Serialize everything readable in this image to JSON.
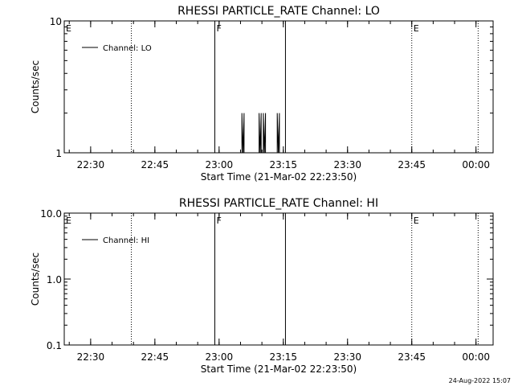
{
  "chart_data": [
    {
      "type": "line",
      "title": "RHESSI PARTICLE_RATE Channel: LO",
      "xlabel": "Start Time (21-Mar-02 22:23:50)",
      "ylabel": "Counts/sec",
      "y_scale": "log",
      "ylim": [
        1,
        10
      ],
      "y_ticks": [
        "1",
        "10"
      ],
      "xlim": [
        "22:23:50",
        "00:04:00"
      ],
      "x_ticks": [
        "22:30",
        "22:45",
        "23:00",
        "23:15",
        "23:30",
        "23:45",
        "00:00"
      ],
      "legend": {
        "label": "Channel: LO",
        "placement": "top-left"
      },
      "markers": [
        {
          "time": "22:23:50",
          "label": "E",
          "style": "dotted"
        },
        {
          "time": "22:39:30",
          "label": "",
          "style": "dotted"
        },
        {
          "time": "22:59:00",
          "label": "F",
          "style": "solid"
        },
        {
          "time": "23:15:30",
          "label": "",
          "style": "solid"
        },
        {
          "time": "23:45:00",
          "label": "E",
          "style": "dotted"
        },
        {
          "time": "00:00:30",
          "label": "",
          "style": "dotted"
        }
      ],
      "series": [
        {
          "name": "Channel: LO",
          "points": [
            [
              "23:05:20",
              1
            ],
            [
              "23:05:20",
              2
            ],
            [
              "23:05:35",
              1
            ],
            [
              "23:05:50",
              2
            ],
            [
              "23:05:50",
              1
            ],
            [
              "23:09:20",
              1
            ],
            [
              "23:09:20",
              2
            ],
            [
              "23:09:35",
              1
            ],
            [
              "23:09:50",
              2
            ],
            [
              "23:09:50",
              1
            ],
            [
              "23:10:20",
              1
            ],
            [
              "23:10:20",
              2
            ],
            [
              "23:10:35",
              1
            ],
            [
              "23:10:50",
              2
            ],
            [
              "23:10:50",
              1
            ],
            [
              "23:13:35",
              1
            ],
            [
              "23:13:35",
              2
            ],
            [
              "23:13:50",
              1
            ],
            [
              "23:14:05",
              2
            ],
            [
              "23:14:05",
              1
            ]
          ]
        }
      ]
    },
    {
      "type": "line",
      "title": "RHESSI PARTICLE_RATE Channel: HI",
      "xlabel": "Start Time (21-Mar-02 22:23:50)",
      "ylabel": "Counts/sec",
      "y_scale": "log",
      "ylim": [
        0.1,
        10
      ],
      "y_ticks": [
        "0.1",
        "1.0",
        "10.0"
      ],
      "xlim": [
        "22:23:50",
        "00:04:00"
      ],
      "x_ticks": [
        "22:30",
        "22:45",
        "23:00",
        "23:15",
        "23:30",
        "23:45",
        "00:00"
      ],
      "legend": {
        "label": "Channel: HI",
        "placement": "top-left"
      },
      "markers": [
        {
          "time": "22:23:50",
          "label": "E",
          "style": "dotted"
        },
        {
          "time": "22:39:30",
          "label": "",
          "style": "dotted"
        },
        {
          "time": "22:59:00",
          "label": "F",
          "style": "solid"
        },
        {
          "time": "23:15:30",
          "label": "",
          "style": "solid"
        },
        {
          "time": "23:45:00",
          "label": "E",
          "style": "dotted"
        },
        {
          "time": "00:00:30",
          "label": "",
          "style": "dotted"
        }
      ],
      "series": [
        {
          "name": "Channel: HI",
          "points": []
        }
      ]
    }
  ],
  "footer": "24-Aug-2022 15:07"
}
